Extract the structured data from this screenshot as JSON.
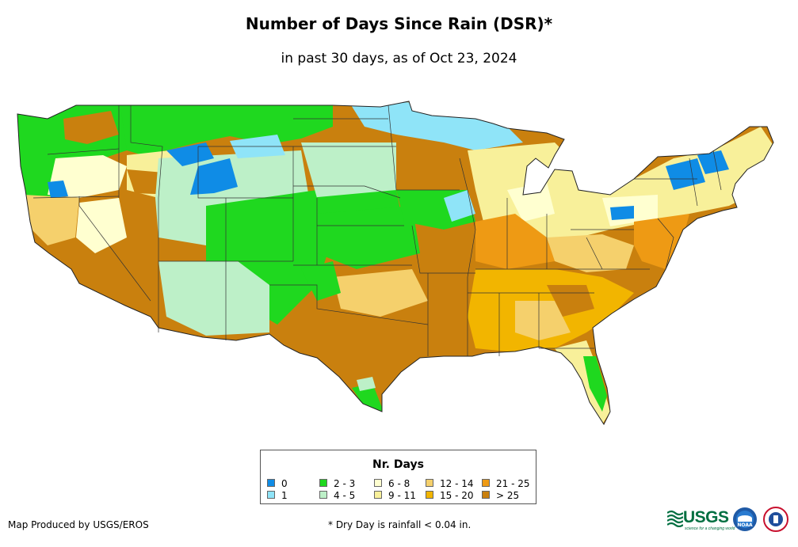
{
  "title": "Number of Days Since Rain (DSR)*",
  "subtitle": "in past 30 days, as of Oct 23, 2024",
  "legend": {
    "title": "Nr. Days",
    "items": [
      {
        "label": "0",
        "color": "#0f8ce6"
      },
      {
        "label": "1",
        "color": "#8fe4f8"
      },
      {
        "label": "2 - 3",
        "color": "#1fd81f"
      },
      {
        "label": "4 - 5",
        "color": "#bdf0c8"
      },
      {
        "label": "6 - 8",
        "color": "#ffffd0"
      },
      {
        "label": "9 - 11",
        "color": "#f8f09a"
      },
      {
        "label": "12 - 14",
        "color": "#f5d06c"
      },
      {
        "label": "15 - 20",
        "color": "#f2b500"
      },
      {
        "label": "21 - 25",
        "color": "#ee9a14"
      },
      {
        "label": "> 25",
        "color": "#c9800e"
      }
    ]
  },
  "credit": "Map Produced by USGS/EROS",
  "footnote": "* Dry Day is rainfall < 0.04 in.",
  "logos": {
    "usgs": "USGS",
    "usgs_tagline": "science for a changing world",
    "noaa": "NOAA"
  }
}
